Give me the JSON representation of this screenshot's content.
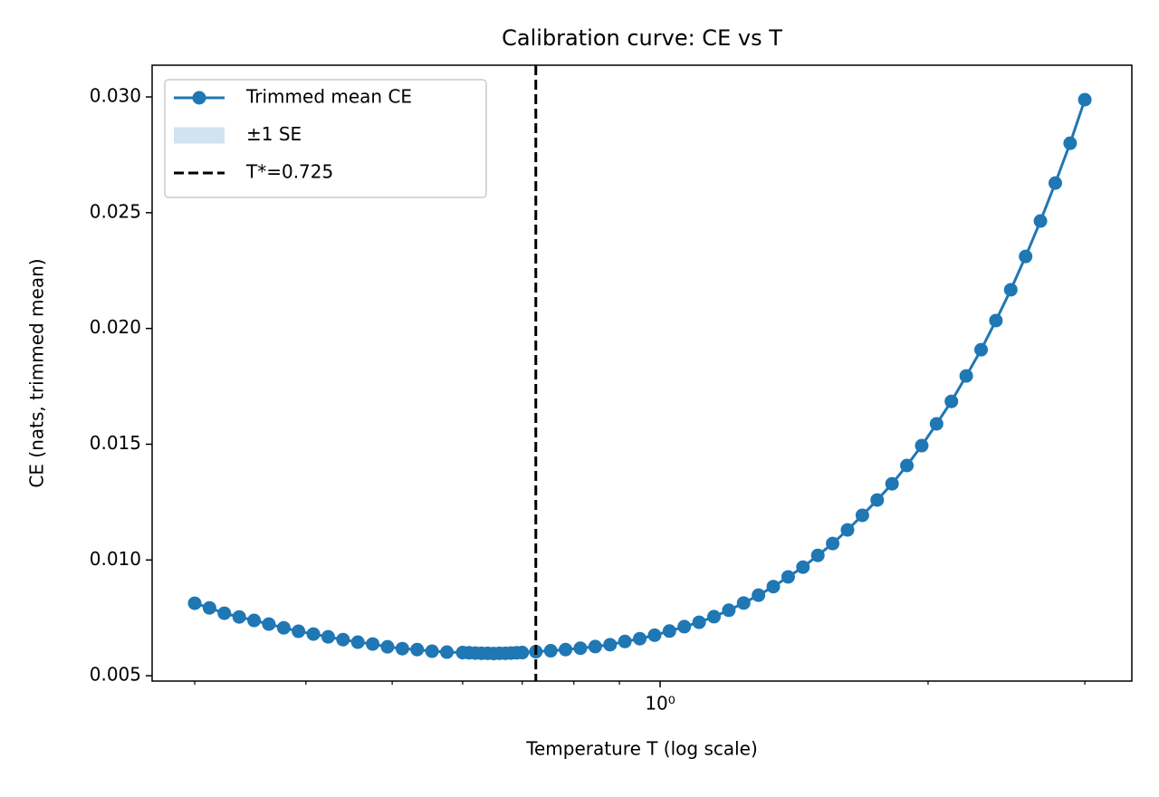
{
  "chart_data": {
    "type": "line",
    "title": "Calibration curve: CE vs T",
    "x_label": "Temperature T (log scale)",
    "y_label": "CE (nats, trimmed mean)",
    "log_x": true,
    "x": [
      0.3,
      0.3117,
      0.3239,
      0.3366,
      0.3498,
      0.3634,
      0.3777,
      0.3924,
      0.4078,
      0.4237,
      0.4403,
      0.4575,
      0.4754,
      0.494,
      0.5133,
      0.5334,
      0.5543,
      0.576,
      0.6,
      0.61,
      0.62,
      0.63,
      0.64,
      0.65,
      0.66,
      0.67,
      0.68,
      0.69,
      0.7,
      0.7251,
      0.7535,
      0.783,
      0.8136,
      0.8454,
      0.8785,
      0.9129,
      0.9487,
      0.9858,
      1.0244,
      1.0645,
      1.1061,
      1.1494,
      1.1944,
      1.2411,
      1.2897,
      1.3402,
      1.3926,
      1.4471,
      1.5038,
      1.5626,
      1.6238,
      1.6873,
      1.7534,
      1.822,
      1.8933,
      1.9674,
      2.0444,
      2.1244,
      2.2075,
      2.2939,
      2.3837,
      2.477,
      2.574,
      2.6747,
      2.7794,
      2.8882,
      3.0
    ],
    "series": [
      {
        "name": "Trimmed mean CE",
        "color": "#1f77b4",
        "values": [
          0.00813,
          0.00793,
          0.0077,
          0.00754,
          0.00739,
          0.00723,
          0.00707,
          0.00692,
          0.0068,
          0.00668,
          0.00656,
          0.00645,
          0.00637,
          0.00625,
          0.00617,
          0.00613,
          0.00606,
          0.00602,
          0.006,
          0.00599,
          0.00598,
          0.00597,
          0.00597,
          0.00596,
          0.00597,
          0.00597,
          0.00598,
          0.00599,
          0.006,
          0.00604,
          0.00608,
          0.00613,
          0.00619,
          0.00626,
          0.00634,
          0.00648,
          0.0066,
          0.00675,
          0.00693,
          0.00712,
          0.00731,
          0.00755,
          0.00783,
          0.00814,
          0.00848,
          0.00885,
          0.00927,
          0.00969,
          0.0102,
          0.01071,
          0.0113,
          0.01193,
          0.01259,
          0.01329,
          0.01408,
          0.01494,
          0.01588,
          0.01685,
          0.01795,
          0.01908,
          0.02034,
          0.02167,
          0.02311,
          0.02464,
          0.02628,
          0.028,
          0.02988
        ]
      }
    ],
    "band": {
      "name": "±1 SE",
      "color": "#d2e3f0"
    },
    "vline": {
      "name": "T*=0.725",
      "x": 0.725,
      "color": "#000000"
    },
    "xlim": [
      0.2687,
      3.388
    ],
    "ylim": [
      0.00477,
      0.03137
    ],
    "xticks": [
      {
        "value": 1,
        "label": "10⁰"
      }
    ],
    "xminor_ticks": [
      0.3,
      0.4,
      0.5,
      0.6,
      0.7,
      0.8,
      0.9,
      2,
      3
    ],
    "yticks": [
      0.005,
      {
        "value": 0.01,
        "label": "0.010"
      },
      0.015,
      {
        "value": 0.02,
        "label": "0.020"
      },
      0.025,
      {
        "value": 0.03,
        "label": "0.030"
      }
    ],
    "legend": "upper left"
  }
}
